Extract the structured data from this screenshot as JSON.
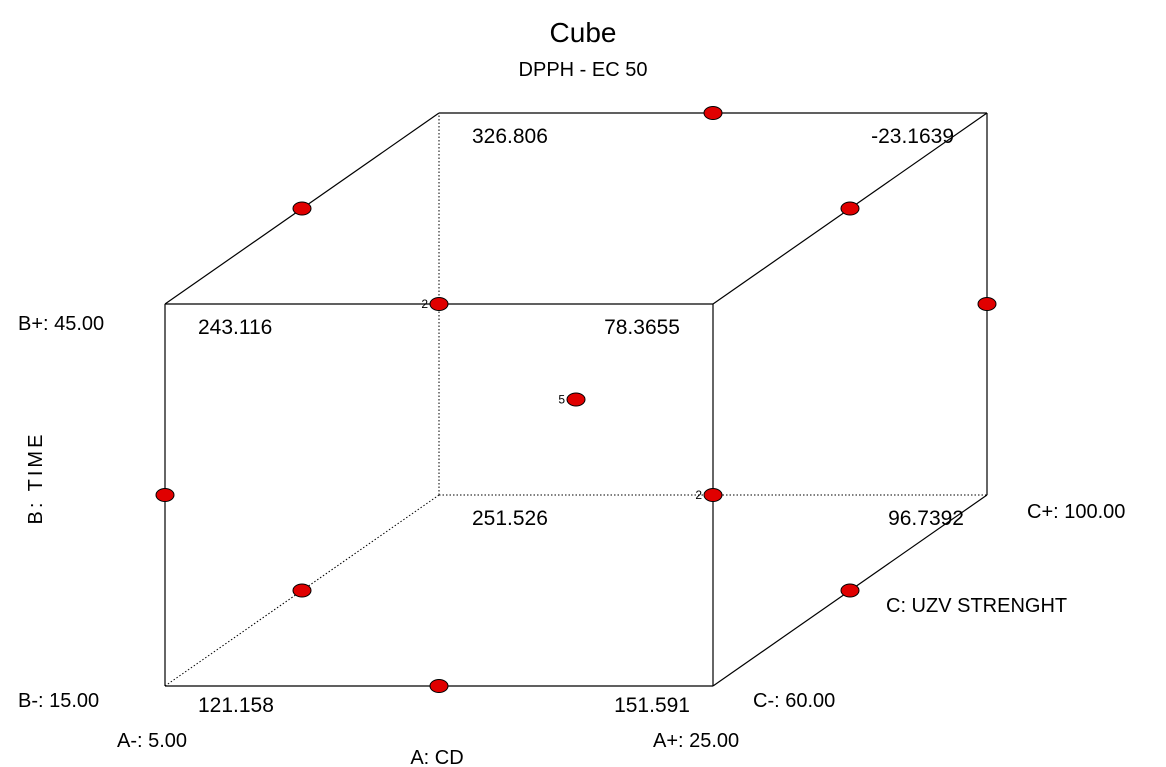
{
  "chart_data": {
    "type": "cube",
    "title": "Cube",
    "subtitle": "DPPH - EC 50",
    "axes": {
      "a": {
        "name": "A: CD",
        "low_label": "A-: 5.00",
        "high_label": "A+: 25.00",
        "low": 5.0,
        "high": 25.0
      },
      "b": {
        "name": "B: TIME",
        "low_label": "B-: 15.00",
        "high_label": "B+: 45.00",
        "low": 15.0,
        "high": 45.0
      },
      "c": {
        "name": "C: UZV STRENGHT",
        "low_label": "C-: 60.00",
        "high_label": "C+: 100.00",
        "low": 60.0,
        "high": 100.0
      }
    },
    "corners": [
      {
        "a": -1,
        "b": -1,
        "c": -1,
        "value": "121.158"
      },
      {
        "a": 1,
        "b": -1,
        "c": -1,
        "value": "151.591"
      },
      {
        "a": -1,
        "b": 1,
        "c": -1,
        "value": "243.116"
      },
      {
        "a": 1,
        "b": 1,
        "c": -1,
        "value": "78.3655"
      },
      {
        "a": -1,
        "b": -1,
        "c": 1,
        "value": "251.526"
      },
      {
        "a": 1,
        "b": -1,
        "c": 1,
        "value": "96.7392"
      },
      {
        "a": -1,
        "b": 1,
        "c": 1,
        "value": "326.806"
      },
      {
        "a": 1,
        "b": 1,
        "c": 1,
        "value": "-23.1639"
      }
    ],
    "design_points": [
      {
        "a": 0,
        "b": -1,
        "c": -1,
        "count": 1
      },
      {
        "a": -1,
        "b": 0,
        "c": -1,
        "count": 1
      },
      {
        "a": -1,
        "b": -1,
        "c": 0,
        "count": 1
      },
      {
        "a": -1,
        "b": 1,
        "c": 0,
        "count": 1
      },
      {
        "a": 1,
        "b": -1,
        "c": 0,
        "count": 1
      },
      {
        "a": 1,
        "b": 1,
        "c": 0,
        "count": 1
      },
      {
        "a": 1,
        "b": 0,
        "c": 1,
        "count": 1
      },
      {
        "a": 0,
        "b": 1,
        "c": 1,
        "count": 1
      },
      {
        "a": 0,
        "b": 1,
        "c": -1,
        "count": 2
      },
      {
        "a": 1,
        "b": 0,
        "c": -1,
        "count": 2
      },
      {
        "a": 0,
        "b": 0,
        "c": 0,
        "count": 5
      }
    ],
    "colors": {
      "point": "#e00000",
      "edge": "#000000"
    }
  }
}
